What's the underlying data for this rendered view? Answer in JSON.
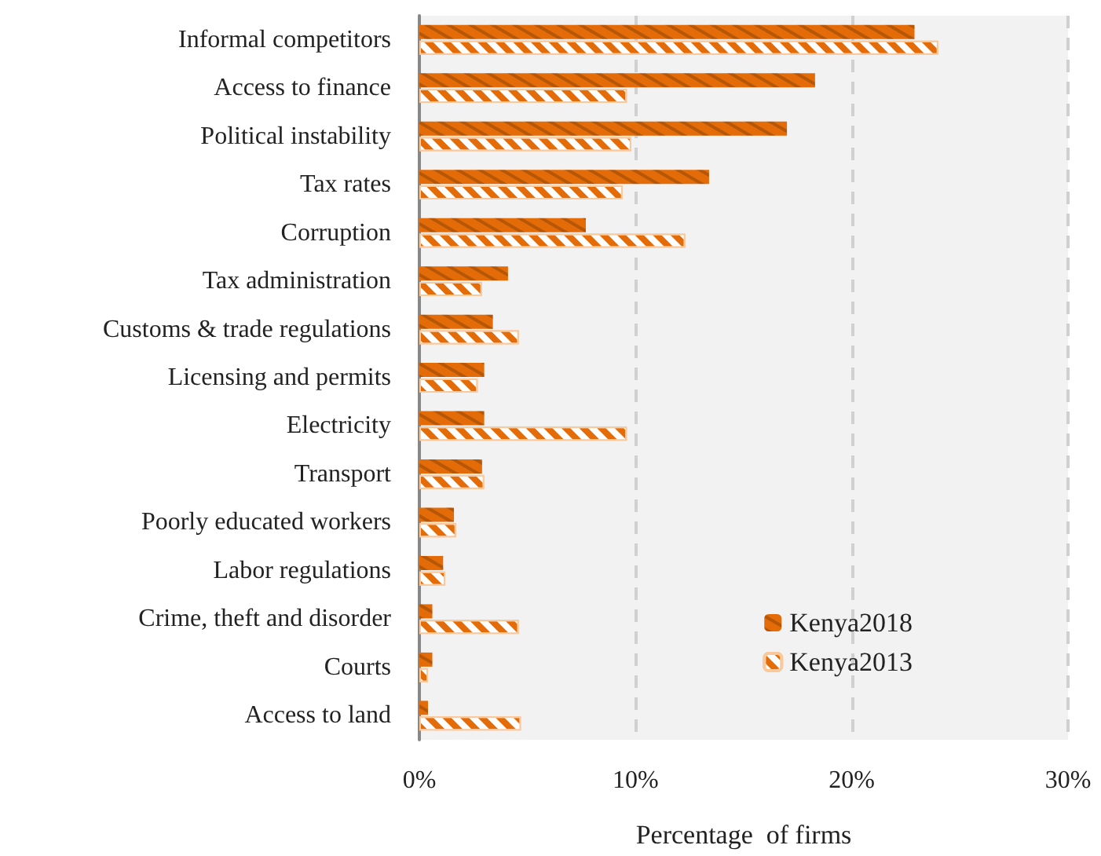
{
  "chart_data": {
    "type": "bar",
    "orientation": "horizontal",
    "xlabel": "Percentage  of firms",
    "categories": [
      "Informal competitors",
      "Access to finance",
      "Political instability",
      "Tax rates",
      "Corruption",
      "Tax administration",
      "Customs & trade regulations",
      "Licensing and permits",
      "Electricity",
      "Transport",
      "Poorly educated workers",
      "Labor regulations",
      "Crime, theft and disorder",
      "Courts",
      "Access to land"
    ],
    "series": [
      {
        "name": "Kenya2018",
        "color": "#e36c09",
        "values": [
          22.9,
          18.3,
          17.0,
          13.4,
          7.7,
          4.1,
          3.4,
          3.0,
          3.0,
          2.9,
          1.6,
          1.1,
          0.6,
          0.6,
          0.4
        ]
      },
      {
        "name": "Kenya2013",
        "color": "#e36c09",
        "values": [
          24.0,
          9.6,
          9.8,
          9.4,
          12.3,
          2.9,
          4.6,
          2.7,
          9.6,
          3.0,
          1.7,
          1.2,
          4.6,
          0.4,
          4.7
        ]
      }
    ],
    "xlim": [
      0,
      30
    ],
    "xticks": [
      {
        "value": 0,
        "label": "0%"
      },
      {
        "value": 10,
        "label": "10%"
      },
      {
        "value": 20,
        "label": "20%"
      },
      {
        "value": 30,
        "label": "30%"
      }
    ],
    "grid": "x",
    "legend": "bottom right"
  }
}
